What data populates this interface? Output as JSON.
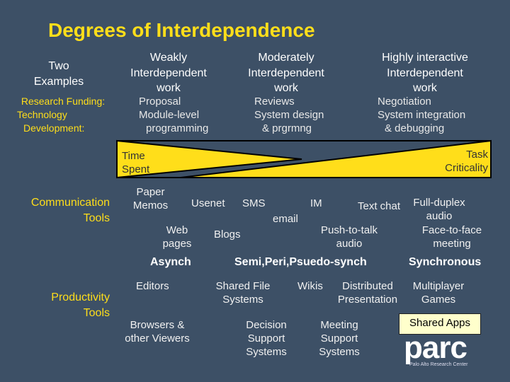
{
  "title": "Degrees of Interdependence",
  "col_headers": {
    "two_examples": [
      "Two",
      "Examples"
    ],
    "weak": [
      "Weakly",
      "Interdependent",
      "work"
    ],
    "moderate": [
      "Moderately",
      "Interdependent",
      "work"
    ],
    "high": [
      "Highly interactive",
      "Interdependent",
      "work"
    ]
  },
  "research": {
    "label": [
      "Research Funding:",
      "Technology",
      "Development:"
    ],
    "weak": [
      "Proposal",
      "Module-level",
      "programming"
    ],
    "moderate": [
      "Reviews",
      "System design",
      "& prgrmng"
    ],
    "high": [
      "Negotiation",
      "System integration",
      "& debugging"
    ]
  },
  "bar": {
    "left_label": [
      "Time",
      "Spent"
    ],
    "right_label": [
      "Task",
      "Criticality"
    ],
    "fill_color": "#ffde1a",
    "outline_color": "#000000"
  },
  "communication": {
    "label": [
      "Communication",
      "Tools"
    ],
    "paper_memos": [
      "Paper",
      "Memos"
    ],
    "usenet": "Usenet",
    "sms": "SMS",
    "im": "IM",
    "text_chat": "Text chat",
    "full_duplex": [
      "Full-duplex",
      "audio"
    ],
    "web_pages": [
      "Web",
      "pages"
    ],
    "blogs": "Blogs",
    "email": "email",
    "push_to_talk": [
      "Push-to-talk",
      "audio"
    ],
    "face_to_face": [
      "Face-to-face",
      "meeting"
    ],
    "asynch": "Asynch",
    "semi": "Semi,Peri,Psuedo-synch",
    "synchronous": "Synchronous"
  },
  "productivity": {
    "label": [
      "Productivity",
      "Tools"
    ],
    "editors": "Editors",
    "shared_file": [
      "Shared File",
      "Systems"
    ],
    "wikis": "Wikis",
    "distributed": [
      "Distributed",
      "Presentation"
    ],
    "multiplayer": [
      "Multiplayer",
      "Games"
    ],
    "browsers": [
      "Browsers &",
      "other Viewers"
    ],
    "decision": [
      "Decision",
      "Support",
      "Systems"
    ],
    "meeting": [
      "Meeting",
      "Support",
      "Systems"
    ]
  },
  "shared_apps": "Shared Apps",
  "logo": {
    "word": "parc",
    "subtitle": "Palo Alto Research Center"
  }
}
